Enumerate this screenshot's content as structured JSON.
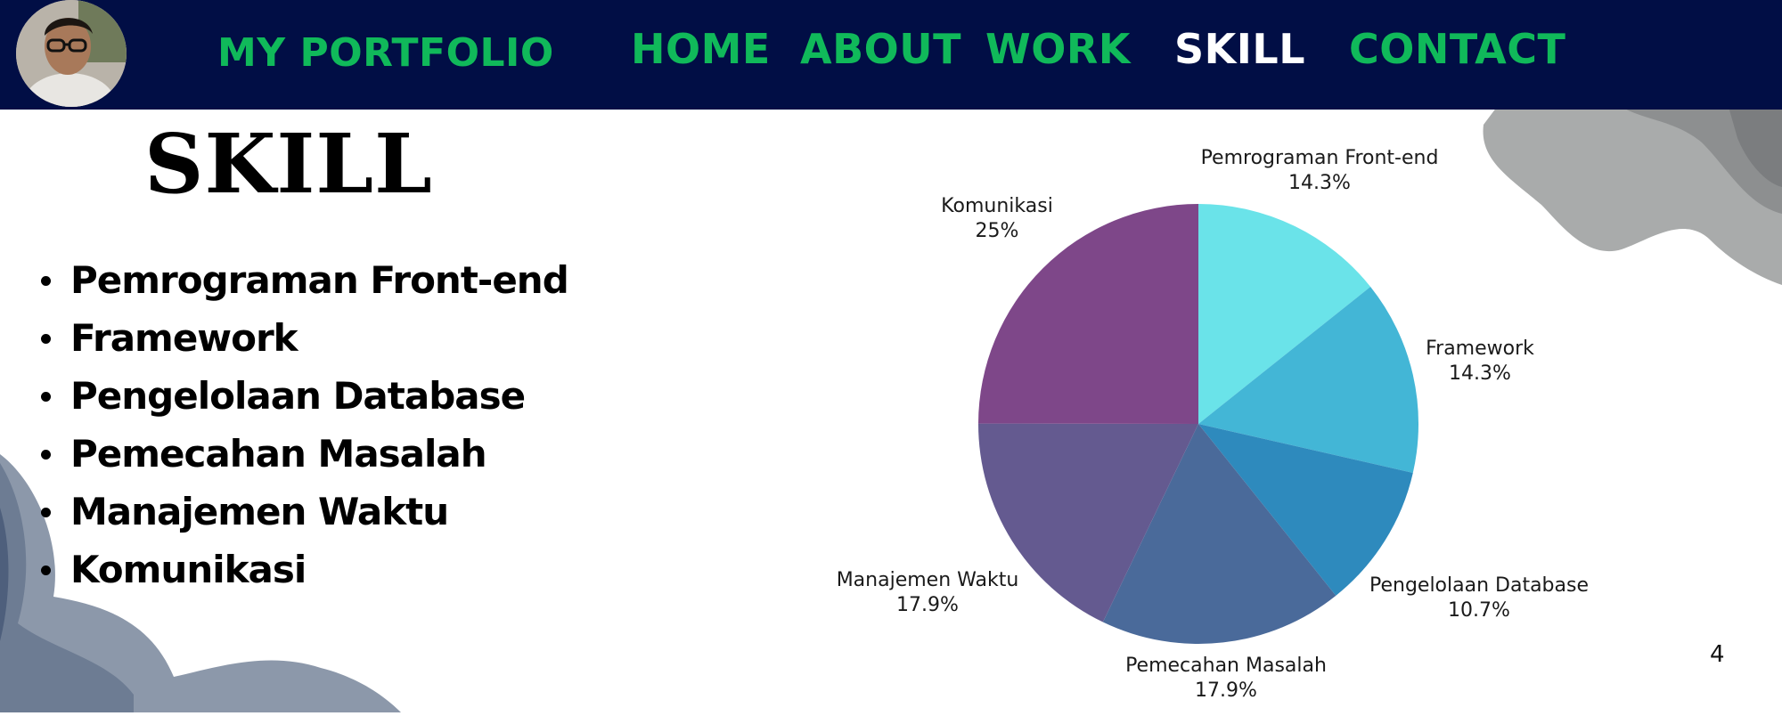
{
  "header": {
    "brand": "MY PORTFOLIO",
    "nav": [
      {
        "label": "HOME"
      },
      {
        "label": "ABOUT"
      },
      {
        "label": "WORK"
      },
      {
        "label": "SKILL",
        "active": true
      },
      {
        "label": "CONTACT"
      }
    ]
  },
  "main": {
    "title": "SKILL",
    "skills": [
      "Pemrograman Front-end",
      "Framework",
      "Pengelolaan Database",
      "Pemecahan Masalah",
      "Manajemen Waktu",
      "Komunikasi"
    ],
    "page_number": "4"
  },
  "colors": {
    "topbar": "#010e45",
    "nav_text": "#10b95a",
    "nav_active": "#ffffff"
  },
  "chart_data": {
    "type": "pie",
    "slices": [
      {
        "label": "Pemrograman Front-end",
        "value": 14.3,
        "value_label": "14.3%",
        "color": "#6ae3e9"
      },
      {
        "label": "Framework",
        "value": 14.3,
        "value_label": "14.3%",
        "color": "#43b6d6"
      },
      {
        "label": "Pengelolaan Database",
        "value": 10.7,
        "value_label": "10.7%",
        "color": "#2e8abd"
      },
      {
        "label": "Pemecahan Masalah",
        "value": 17.9,
        "value_label": "17.9%",
        "color": "#4a6a9a"
      },
      {
        "label": "Manajemen Waktu",
        "value": 17.9,
        "value_label": "17.9%",
        "color": "#645a90"
      },
      {
        "label": "Komunikasi",
        "value": 25,
        "value_label": "25%",
        "color": "#7e4789"
      }
    ]
  }
}
